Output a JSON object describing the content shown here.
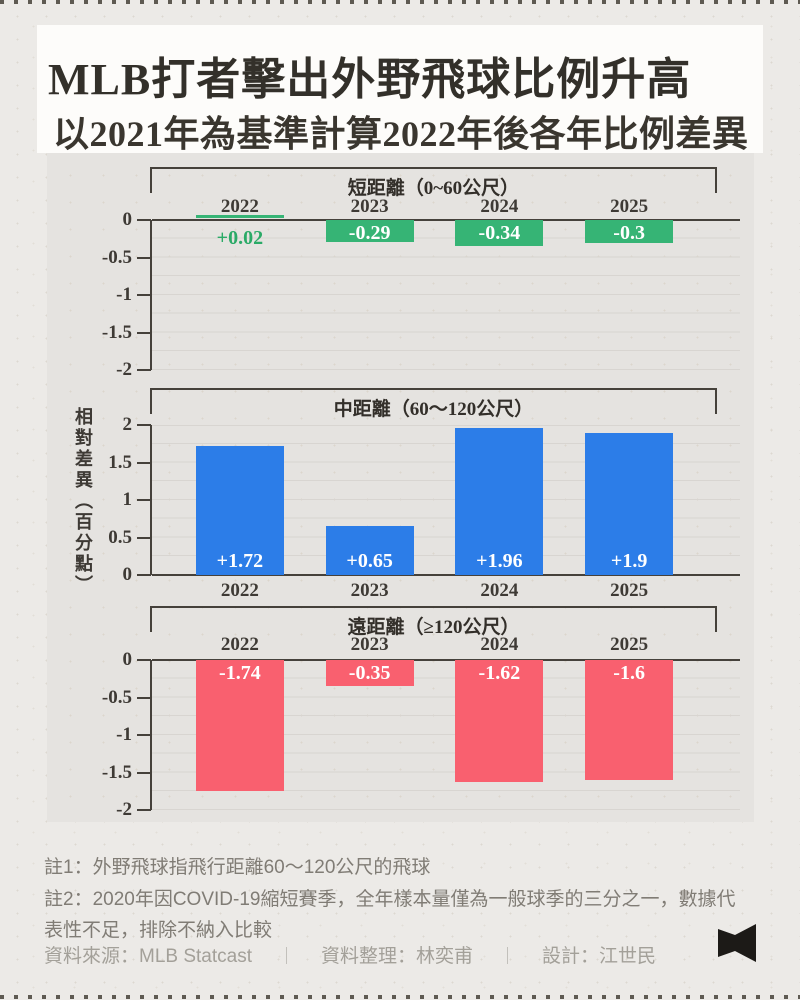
{
  "header": {
    "title": "MLB打者擊出外野飛球比例升高",
    "subtitle": "以2021年為基準計算2022年後各年比例差異"
  },
  "y_axis_label": "相對差異（百分點）",
  "chart_data": [
    {
      "type": "bar",
      "title": "短距離（0~60公尺）",
      "categories": [
        "2022",
        "2023",
        "2024",
        "2025"
      ],
      "values": [
        0.02,
        -0.29,
        -0.34,
        -0.3
      ],
      "bar_labels": [
        "+0.02",
        "-0.29",
        "-0.34",
        "-0.3"
      ],
      "bar_color": "#36b475",
      "positive_label_color": "#2baa67",
      "direction": "down",
      "ylim": [
        -2,
        0
      ],
      "yticks": [
        0,
        -0.5,
        -1,
        -1.5,
        -2
      ],
      "ytick_labels": [
        "0",
        "-0.5",
        "-1",
        "-1.5",
        "-2"
      ],
      "grid": "minor lines every 0.25, no vertical grid"
    },
    {
      "type": "bar",
      "title": "中距離（60～120公尺）",
      "categories": [
        "2022",
        "2023",
        "2024",
        "2025"
      ],
      "values": [
        1.72,
        0.65,
        1.96,
        1.9
      ],
      "bar_labels": [
        "+1.72",
        "+0.65",
        "+1.96",
        "+1.9"
      ],
      "bar_color": "#2c7de8",
      "direction": "up",
      "ylim": [
        0,
        2
      ],
      "yticks": [
        2,
        1.5,
        1,
        0.5,
        0
      ],
      "ytick_labels": [
        "2",
        "1.5",
        "1",
        "0.5",
        "0"
      ],
      "grid": "minor lines every 0.25, no vertical grid"
    },
    {
      "type": "bar",
      "title": "遠距離（≥120公尺）",
      "categories": [
        "2022",
        "2023",
        "2024",
        "2025"
      ],
      "values": [
        -1.74,
        -0.35,
        -1.62,
        -1.6
      ],
      "bar_labels": [
        "-1.74",
        "-0.35",
        "-1.62",
        "-1.6"
      ],
      "bar_color": "#f9606f",
      "direction": "down",
      "ylim": [
        -2,
        0
      ],
      "yticks": [
        0,
        -0.5,
        -1,
        -1.5,
        -2
      ],
      "ytick_labels": [
        "0",
        "-0.5",
        "-1",
        "-1.5",
        "-2"
      ],
      "grid": "minor lines every 0.25, no vertical grid"
    }
  ],
  "notes": [
    "註1：外野飛球指飛行距離60～120公尺的飛球",
    "註2：2020年因COVID-19縮短賽季，全年樣本量僅為一般球季的三分之一，數據代表性不足，排除不納入比較"
  ],
  "footer": {
    "source": "資料來源：MLB Statcast",
    "editor": "資料整理：林奕甫",
    "designer": "設計：江世民",
    "separator": "｜"
  },
  "colors": {
    "background": "#eceae7",
    "card": "#fdfcfa",
    "panel": "#e5e3e0",
    "text": "#33302a",
    "axis": "#45413b",
    "gridline": "#d8d5d1",
    "green": "#36b475",
    "blue": "#2c7de8",
    "red": "#f9606f",
    "note_text": "#807c75",
    "credit_text": "#a3a099"
  }
}
